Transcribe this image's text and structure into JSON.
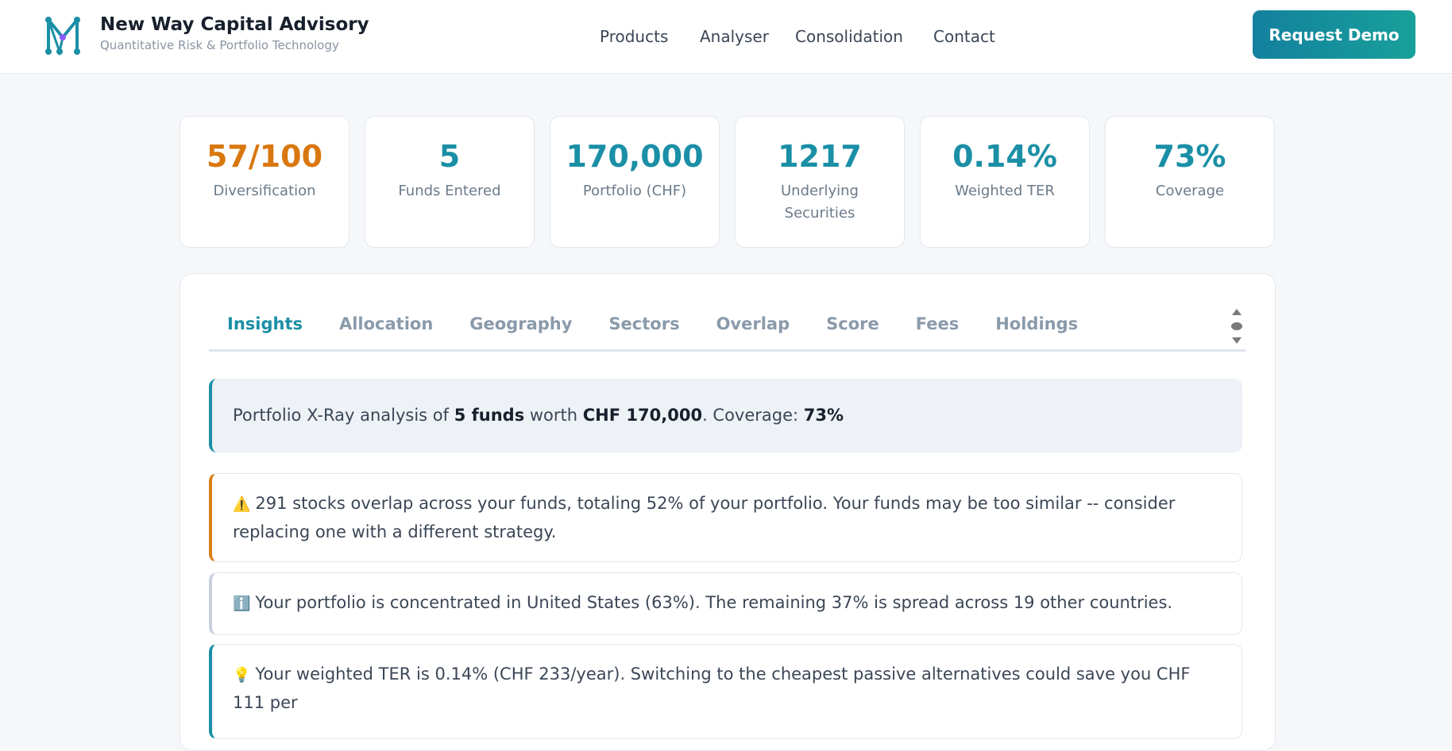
{
  "header": {
    "title": "New Way Capital Advisory",
    "subtitle": "Quantitative Risk & Portfolio Technology",
    "nav": [
      "Products",
      "Analyser",
      "Consolidation",
      "Contact"
    ],
    "button": "Request Demo"
  },
  "stats": [
    {
      "value": "57/100",
      "label": "Diversification"
    },
    {
      "value": "5",
      "label": "Funds Entered"
    },
    {
      "value": "170,000",
      "label": "Portfolio (CHF)"
    },
    {
      "value": "1217",
      "label": "Underlying Securities"
    },
    {
      "value": "0.14%",
      "label": "Weighted TER"
    },
    {
      "value": "73%",
      "label": "Coverage"
    }
  ],
  "tabs": [
    "Insights",
    "Allocation",
    "Geography",
    "Sectors",
    "Overlap",
    "Score",
    "Fees",
    "Holdings"
  ],
  "summary": [
    "Portfolio X-Ray analysis of ",
    "5 funds",
    " worth ",
    "CHF 170,000",
    ". Coverage: ",
    "73%"
  ],
  "insights": [
    {
      "icon": "⚠️",
      "text": "291 stocks overlap across your funds, totaling 52% of your portfolio. Your funds may be too similar -- consider replacing one with a different strategy."
    },
    {
      "icon": "ℹ️",
      "text": "Your portfolio is concentrated in United States (63%). The remaining 37% is spread across 19 other countries."
    },
    {
      "icon": "💡",
      "text": "Your weighted TER is 0.14% (CHF 233/year). Switching to the cheapest passive alternatives could save you CHF 111 per"
    }
  ]
}
